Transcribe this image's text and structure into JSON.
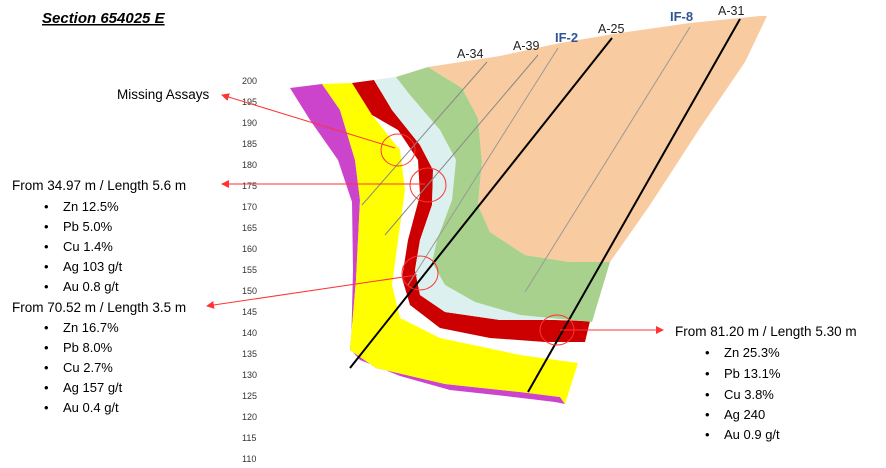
{
  "title": "Section 654025 E",
  "elevation_labels": [
    "200",
    "195",
    "190",
    "185",
    "180",
    "175",
    "170",
    "165",
    "160",
    "155",
    "150",
    "145",
    "140",
    "135",
    "130",
    "125",
    "120",
    "115",
    "110"
  ],
  "drillholes": [
    "A-34",
    "A-39",
    "IF-2",
    "A-25",
    "IF-8",
    "A-31"
  ],
  "callouts": {
    "missing": "Missing Assays",
    "c1": {
      "header": "From 34.97 m / Length 5.6 m",
      "items": [
        "Zn 12.5%",
        "Pb 5.0%",
        "Cu 1.4%",
        "Ag 103 g/t",
        "Au 0.8 g/t"
      ]
    },
    "c2": {
      "header": "From 70.52 m / Length 3.5 m",
      "items": [
        "Zn 16.7%",
        "Pb 8.0%",
        "Cu 2.7%",
        "Ag 157 g/t",
        "Au 0.4 g/t"
      ]
    },
    "c3": {
      "header": "From 81.20 m / Length 5.30 m",
      "items": [
        "Zn 25.3%",
        "Pb 13.1%",
        "Cu 3.8%",
        "Ag 240",
        "Au 0.9 g/t"
      ]
    }
  },
  "colors": {
    "magenta": "#cc44cc",
    "yellow": "#ffff00",
    "red_ore": "#cc0000",
    "light_blue": "#ddf0f0",
    "green": "#a9d18e",
    "orange": "#f8cba0",
    "leader": "#ff3333",
    "hole_label_blue": "#2f5597"
  }
}
